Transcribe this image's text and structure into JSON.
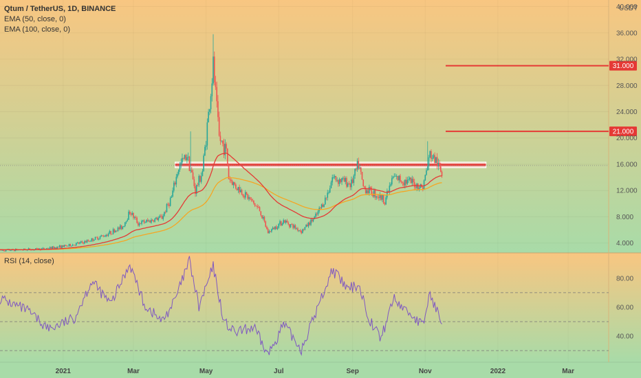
{
  "header": {
    "title": "Qtum / TetherUS, 1D, BINANCE",
    "ema50": "EMA (50, close, 0)",
    "ema100": "EMA (100, close, 0)",
    "rsi": "RSI (14, close)",
    "currency": "USDT"
  },
  "colors": {
    "up": "#26a69a",
    "down": "#ef5350",
    "ema50": "#e53935",
    "ema100": "#f5a623",
    "rsi": "#7e57c2",
    "level": "#e53935",
    "bg_top": "#f8c681",
    "bg_bottom": "#a8dba8"
  },
  "chart_data": [
    {
      "type": "candlestick",
      "title": "Qtum / TetherUS, 1D, BINANCE",
      "ylim": [
        2.5,
        41
      ],
      "y_ticks": [
        "4.000",
        "8.000",
        "12.000",
        "16.000",
        "20.000",
        "24.000",
        "28.000",
        "32.000",
        "36.000",
        "40.000"
      ],
      "y_tick_values": [
        4,
        8,
        12,
        16,
        20,
        24,
        28,
        32,
        36,
        40
      ],
      "x_ticks": [
        "2021",
        "Mar",
        "May",
        "Jul",
        "Sep",
        "Nov",
        "2022",
        "Mar"
      ],
      "x_tick_values": [
        "2021-01-01",
        "2021-03-01",
        "2021-05-01",
        "2021-07-01",
        "2021-09-01",
        "2021-11-01",
        "2022-01-01",
        "2022-03-01"
      ],
      "xlim": [
        "2020-11-09",
        "2022-04-04"
      ],
      "price_anchors": [
        {
          "date": "2020-11-09",
          "close": 2.9
        },
        {
          "date": "2020-12-15",
          "close": 3.1
        },
        {
          "date": "2021-01-05",
          "close": 3.6
        },
        {
          "date": "2021-01-20",
          "close": 4.2
        },
        {
          "date": "2021-02-05",
          "close": 5.2
        },
        {
          "date": "2021-02-20",
          "close": 6.5
        },
        {
          "date": "2021-02-26",
          "close": 8.8
        },
        {
          "date": "2021-03-05",
          "close": 7.0
        },
        {
          "date": "2021-03-15",
          "close": 7.4
        },
        {
          "date": "2021-03-25",
          "close": 7.9
        },
        {
          "date": "2021-04-02",
          "close": 11.0
        },
        {
          "date": "2021-04-08",
          "close": 15.5
        },
        {
          "date": "2021-04-15",
          "close": 17.5
        },
        {
          "date": "2021-04-22",
          "close": 12.0
        },
        {
          "date": "2021-04-28",
          "close": 15.0
        },
        {
          "date": "2021-05-05",
          "close": 27.0
        },
        {
          "date": "2021-05-07",
          "close": 31.0
        },
        {
          "date": "2021-05-12",
          "close": 20.0
        },
        {
          "date": "2021-05-18",
          "close": 18.0
        },
        {
          "date": "2021-05-20",
          "close": 14.0
        },
        {
          "date": "2021-05-25",
          "close": 12.8
        },
        {
          "date": "2021-06-05",
          "close": 11.0
        },
        {
          "date": "2021-06-15",
          "close": 9.0
        },
        {
          "date": "2021-06-22",
          "close": 5.6
        },
        {
          "date": "2021-07-05",
          "close": 7.4
        },
        {
          "date": "2021-07-20",
          "close": 5.8
        },
        {
          "date": "2021-08-01",
          "close": 8.0
        },
        {
          "date": "2021-08-10",
          "close": 11.0
        },
        {
          "date": "2021-08-15",
          "close": 14.0
        },
        {
          "date": "2021-08-31",
          "close": 13.0
        },
        {
          "date": "2021-09-06",
          "close": 16.0
        },
        {
          "date": "2021-09-10",
          "close": 12.5
        },
        {
          "date": "2021-09-20",
          "close": 11.5
        },
        {
          "date": "2021-09-28",
          "close": 10.5
        },
        {
          "date": "2021-10-05",
          "close": 14.0
        },
        {
          "date": "2021-10-20",
          "close": 13.2
        },
        {
          "date": "2021-10-30",
          "close": 12.5
        },
        {
          "date": "2021-11-05",
          "close": 17.5
        },
        {
          "date": "2021-11-10",
          "close": 16.5
        },
        {
          "date": "2021-11-15",
          "close": 14.5
        }
      ],
      "spikes": [
        {
          "date": "2021-05-07",
          "high": 35.8
        },
        {
          "date": "2021-04-18",
          "high": 21.0
        },
        {
          "date": "2021-09-06",
          "high": 17.0
        },
        {
          "date": "2021-11-03",
          "high": 19.5
        }
      ],
      "ema50_end": 14.5,
      "ema100_end": 13.4,
      "last_price": 15.8,
      "levels": [
        {
          "value": 31,
          "label": "31.000"
        },
        {
          "value": 21,
          "label": "21.000"
        }
      ],
      "zone": {
        "value": 15.9,
        "start": "2021-04-05",
        "end": "2021-12-22"
      }
    },
    {
      "type": "line",
      "title": "RSI (14, close)",
      "ylim": [
        22,
        97
      ],
      "y_ticks": [
        "40.00",
        "60.00",
        "80.00"
      ],
      "y_tick_values": [
        40,
        60,
        80
      ],
      "bands": [
        30,
        50,
        70
      ],
      "rsi_anchors": [
        {
          "date": "2020-11-09",
          "v": 66
        },
        {
          "date": "2020-12-01",
          "v": 58
        },
        {
          "date": "2020-12-20",
          "v": 45
        },
        {
          "date": "2021-01-10",
          "v": 52
        },
        {
          "date": "2021-01-25",
          "v": 78
        },
        {
          "date": "2021-02-10",
          "v": 62
        },
        {
          "date": "2021-02-26",
          "v": 90
        },
        {
          "date": "2021-03-10",
          "v": 62
        },
        {
          "date": "2021-03-25",
          "v": 50
        },
        {
          "date": "2021-04-05",
          "v": 65
        },
        {
          "date": "2021-04-17",
          "v": 92
        },
        {
          "date": "2021-04-25",
          "v": 60
        },
        {
          "date": "2021-05-07",
          "v": 88
        },
        {
          "date": "2021-05-16",
          "v": 50
        },
        {
          "date": "2021-05-25",
          "v": 42
        },
        {
          "date": "2021-06-10",
          "v": 46
        },
        {
          "date": "2021-06-22",
          "v": 27
        },
        {
          "date": "2021-07-05",
          "v": 48
        },
        {
          "date": "2021-07-20",
          "v": 31
        },
        {
          "date": "2021-08-01",
          "v": 56
        },
        {
          "date": "2021-08-15",
          "v": 86
        },
        {
          "date": "2021-08-28",
          "v": 72
        },
        {
          "date": "2021-09-06",
          "v": 76
        },
        {
          "date": "2021-09-15",
          "v": 52
        },
        {
          "date": "2021-09-25",
          "v": 38
        },
        {
          "date": "2021-10-05",
          "v": 66
        },
        {
          "date": "2021-10-20",
          "v": 55
        },
        {
          "date": "2021-10-30",
          "v": 47
        },
        {
          "date": "2021-11-05",
          "v": 70
        },
        {
          "date": "2021-11-10",
          "v": 58
        },
        {
          "date": "2021-11-15",
          "v": 52
        }
      ]
    }
  ]
}
